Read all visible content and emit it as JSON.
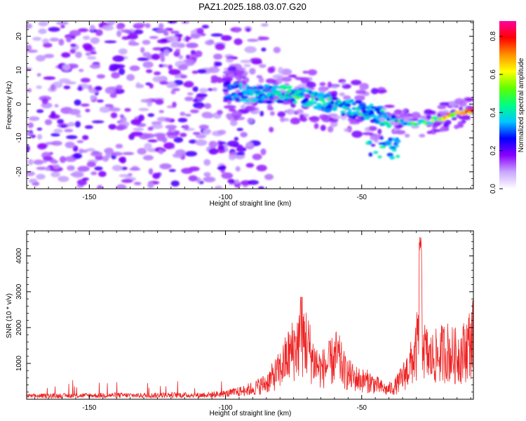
{
  "title": "PAZ1.2025.188.03.07.G20",
  "chart_data": [
    {
      "type": "heatmap",
      "xlabel": "Height of straight line (km)",
      "ylabel": "Frequency (Hz)",
      "xlim": [
        -173,
        -9
      ],
      "ylim": [
        -25,
        24.5
      ],
      "xticks": [
        -150,
        -100,
        -50
      ],
      "yticks": [
        -20,
        -10,
        0,
        10,
        20
      ],
      "colorbar": {
        "label": "Normalized spectral amplitude",
        "range": [
          0,
          0.88
        ],
        "ticks": [
          "0.0",
          "0.2",
          "0.4",
          "0.6",
          "0.8"
        ],
        "colormap": [
          "#ffffff",
          "#c9a7ff",
          "#8a00ff",
          "#0000ff",
          "#00c8ff",
          "#00ff80",
          "#60ff00",
          "#ffff00",
          "#ff9000",
          "#ff0000",
          "#ff00a0"
        ]
      },
      "ridge": {
        "description_points_x": [
          -100,
          -95,
          -90,
          -85,
          -80,
          -75,
          -70,
          -65,
          -60,
          -55,
          -50,
          -45,
          -40,
          -35,
          -30,
          -25,
          -20,
          -15,
          -10
        ],
        "description_points_y": [
          4,
          3.5,
          3,
          3,
          3,
          2.5,
          2,
          1,
          0,
          -1,
          -2,
          -3,
          -4,
          -5,
          -6,
          -5,
          -4,
          -3,
          -2
        ],
        "peak_amplitudes": [
          0.35,
          0.4,
          0.4,
          0.45,
          0.45,
          0.5,
          0.45,
          0.45,
          0.45,
          0.4,
          0.45,
          0.4,
          0.45,
          0.5,
          0.55,
          0.6,
          0.7,
          0.85,
          0.88
        ]
      },
      "grid": false
    },
    {
      "type": "line",
      "xlabel": "Height of straight line (km)",
      "ylabel": "SNR (10 * v/v)",
      "xlim": [
        -173,
        -9
      ],
      "ylim": [
        0,
        4700
      ],
      "xticks": [
        -150,
        -100,
        -50
      ],
      "yticks": [
        1000,
        2000,
        3000,
        4000
      ],
      "color": "#ee2222",
      "x": [
        -173,
        -160,
        -150,
        -140,
        -130,
        -120,
        -110,
        -100,
        -95,
        -90,
        -85,
        -80,
        -77,
        -74,
        -71,
        -68,
        -65,
        -62,
        -59,
        -56,
        -53,
        -50,
        -47,
        -44,
        -41,
        -38,
        -35,
        -32,
        -30,
        -29,
        -28.5,
        -28,
        -27,
        -25,
        -22,
        -19,
        -16,
        -13,
        -11,
        -9
      ],
      "y": [
        120,
        130,
        140,
        150,
        140,
        160,
        150,
        200,
        280,
        400,
        600,
        1100,
        1600,
        2000,
        2300,
        1500,
        1100,
        1300,
        1600,
        1000,
        800,
        700,
        650,
        500,
        350,
        450,
        800,
        1300,
        1700,
        2600,
        4600,
        3200,
        1800,
        1500,
        1600,
        1800,
        1600,
        1700,
        2000,
        2300
      ],
      "grid": false
    }
  ]
}
